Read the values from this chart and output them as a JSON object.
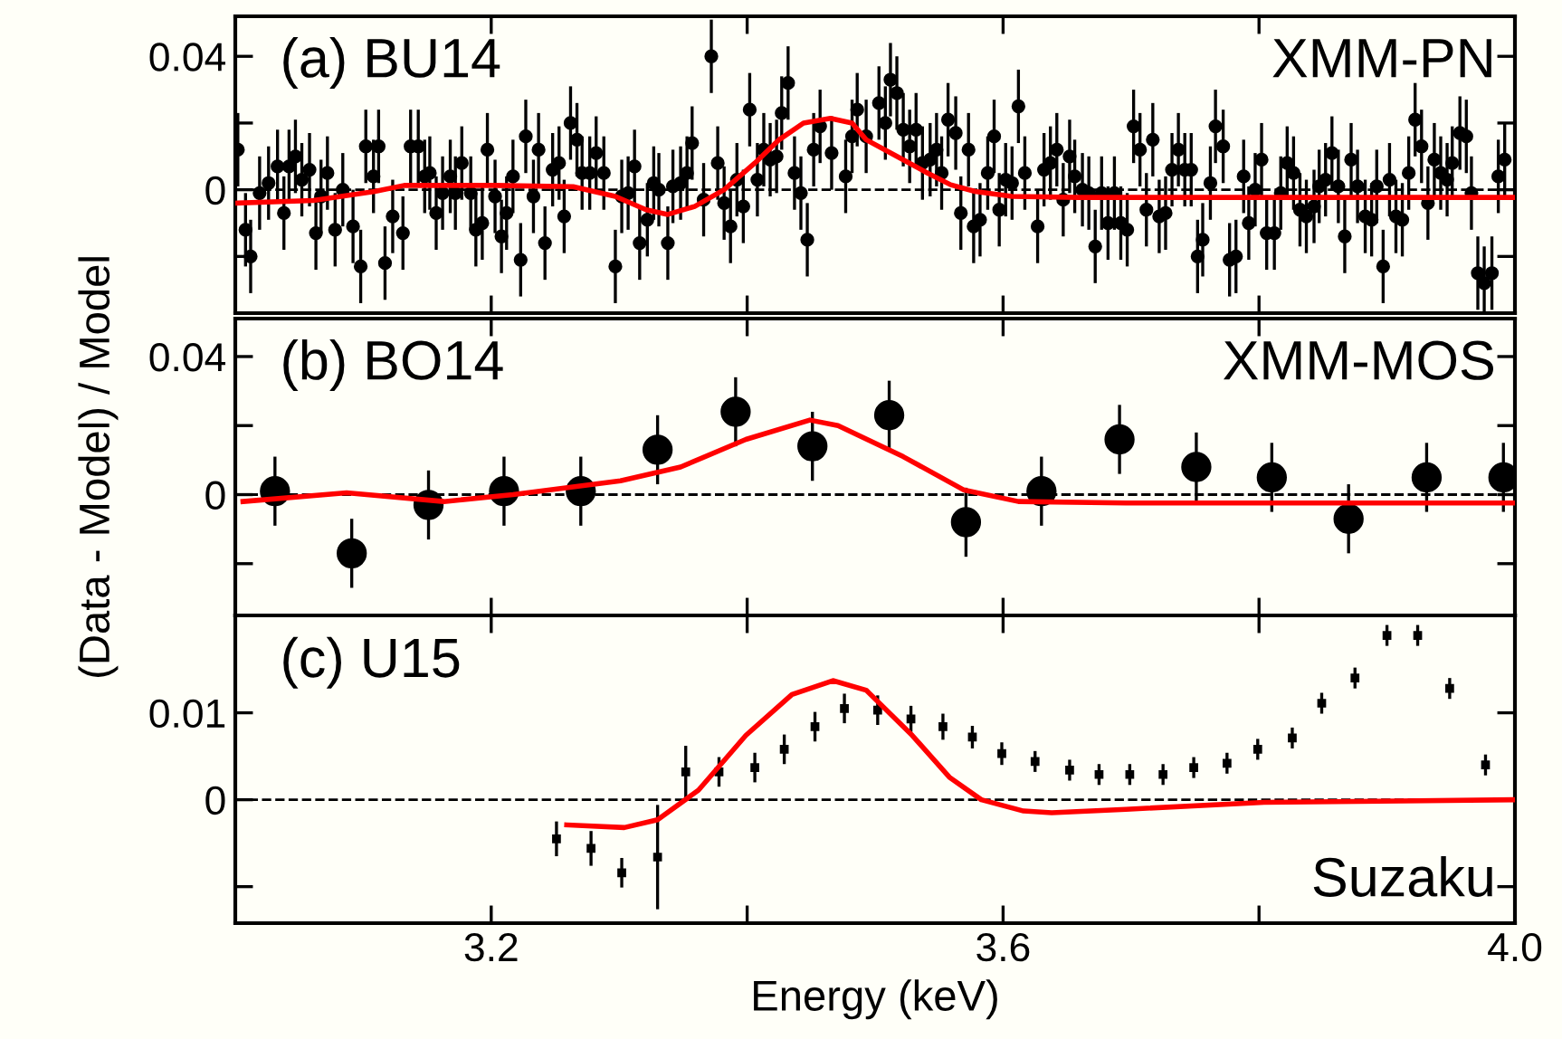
{
  "chart_data": [
    {
      "type": "scatter",
      "annotations": [
        "(a) BU14",
        "XMM-PN"
      ],
      "xlim": [
        3.0,
        4.0
      ],
      "ylim": [
        -0.037,
        0.052
      ],
      "xticks": [
        {
          "value": 3.2,
          "label": null
        },
        {
          "value": 3.4,
          "label": null
        },
        {
          "value": 3.6,
          "label": null
        },
        {
          "value": 3.8,
          "label": null
        }
      ],
      "yticks": [
        {
          "value": -0.02,
          "label": null
        },
        0,
        {
          "value": 0.02,
          "label": null
        },
        0.04
      ],
      "tick_labels": "y",
      "ref_lines": [
        {
          "axis": "y",
          "value": 0,
          "color": "#000000",
          "line_style": "dashed"
        }
      ],
      "series": [
        {
          "color": "#000000",
          "marker": "circle",
          "x": [
            3.002,
            3.008,
            3.012,
            3.019,
            3.026,
            3.033,
            3.038,
            3.042,
            3.047,
            3.052,
            3.058,
            3.063,
            3.067,
            3.072,
            3.078,
            3.084,
            3.092,
            3.098,
            3.102,
            3.108,
            3.112,
            3.117,
            3.123,
            3.131,
            3.137,
            3.143,
            3.148,
            3.152,
            3.157,
            3.162,
            3.168,
            3.172,
            3.177,
            3.184,
            3.188,
            3.193,
            3.197,
            3.203,
            3.208,
            3.212,
            3.217,
            3.223,
            3.227,
            3.233,
            3.237,
            3.242,
            3.248,
            3.253,
            3.257,
            3.262,
            3.267,
            3.271,
            3.277,
            3.282,
            3.288,
            3.297,
            3.302,
            3.307,
            3.312,
            3.316,
            3.322,
            3.327,
            3.331,
            3.338,
            3.342,
            3.348,
            3.353,
            3.357,
            3.366,
            3.372,
            3.377,
            3.382,
            3.387,
            3.392,
            3.397,
            3.402,
            3.408,
            3.413,
            3.418,
            3.423,
            3.427,
            3.432,
            3.437,
            3.442,
            3.447,
            3.452,
            3.457,
            3.466,
            3.477,
            3.482,
            3.486,
            3.493,
            3.503,
            3.508,
            3.512,
            3.517,
            3.522,
            3.527,
            3.532,
            3.537,
            3.543,
            3.548,
            3.552,
            3.557,
            3.563,
            3.567,
            3.573,
            3.577,
            3.582,
            3.588,
            3.593,
            3.597,
            3.602,
            3.607,
            3.612,
            3.617,
            3.627,
            3.632,
            3.637,
            3.642,
            3.647,
            3.652,
            3.656,
            3.662,
            3.667,
            3.672,
            3.677,
            3.682,
            3.687,
            3.692,
            3.697,
            3.702,
            3.707,
            3.712,
            3.717,
            3.722,
            3.727,
            3.732,
            3.737,
            3.742,
            3.747,
            3.752,
            3.756,
            3.762,
            3.766,
            3.772,
            3.777,
            3.782,
            3.788,
            3.792,
            3.797,
            3.802,
            3.806,
            3.812,
            3.817,
            3.822,
            3.827,
            3.832,
            3.837,
            3.843,
            3.847,
            3.852,
            3.857,
            3.862,
            3.867,
            3.872,
            3.877,
            3.883,
            3.888,
            3.892,
            3.897,
            3.902,
            3.907,
            3.912,
            3.917,
            3.922,
            3.927,
            3.932,
            3.937,
            3.942,
            3.947,
            3.951,
            3.957,
            3.962,
            3.966,
            3.971,
            3.976,
            3.982,
            3.987,
            3.992
          ],
          "values": [
            0.012,
            -0.012,
            -0.02,
            -0.001,
            0.002,
            0.007,
            -0.007,
            0.007,
            0.01,
            0.003,
            0.006,
            -0.013,
            -0.002,
            0.005,
            -0.012,
            0.0,
            -0.011,
            -0.023,
            0.013,
            0.004,
            0.013,
            -0.022,
            -0.008,
            -0.013,
            0.013,
            0.013,
            0.004,
            0.005,
            -0.007,
            -0.001,
            0.004,
            -0.001,
            0.008,
            -0.001,
            -0.012,
            -0.01,
            0.012,
            -0.002,
            -0.014,
            -0.007,
            0.004,
            -0.021,
            0.016,
            -0.002,
            0.012,
            -0.016,
            0.006,
            0.008,
            -0.008,
            0.02,
            0.015,
            0.005,
            0.005,
            0.011,
            0.005,
            -0.023,
            -0.002,
            -0.001,
            0.007,
            -0.016,
            -0.009,
            0.002,
            0.0,
            -0.016,
            0.001,
            0.002,
            0.005,
            0.014,
            -0.003,
            0.04,
            0.008,
            -0.004,
            -0.011,
            0.003,
            -0.005,
            0.024,
            0.003,
            0.012,
            0.009,
            0.01,
            0.023,
            0.032,
            0.005,
            -0.001,
            -0.015,
            0.012,
            0.019,
            0.011,
            0.004,
            0.016,
            0.024,
            0.016,
            0.026,
            0.02,
            0.033,
            0.029,
            0.018,
            0.013,
            0.018,
            0.008,
            0.009,
            0.012,
            0.005,
            0.021,
            0.017,
            -0.007,
            0.012,
            -0.011,
            -0.009,
            0.005,
            0.016,
            -0.006,
            0.003,
            0.002,
            0.025,
            0.005,
            -0.011,
            0.006,
            0.008,
            0.012,
            -0.003,
            0.01,
            0.004,
            0.0,
            -0.001,
            -0.017,
            -0.001,
            -0.01,
            -0.001,
            -0.01,
            -0.012,
            0.019,
            0.012,
            -0.006,
            0.015,
            -0.008,
            -0.007,
            0.006,
            0.012,
            0.006,
            0.006,
            -0.02,
            -0.015,
            0.002,
            0.019,
            0.013,
            -0.021,
            -0.02,
            0.004,
            -0.01,
            0.0,
            0.009,
            -0.013,
            -0.013,
            -0.001,
            0.008,
            0.005,
            -0.006,
            -0.008,
            -0.005,
            0.001,
            0.003,
            0.011,
            0.001,
            -0.014,
            0.009,
            0.001,
            -0.008,
            -0.009,
            0.001,
            -0.023,
            0.003,
            -0.008,
            -0.009,
            0.005,
            0.021,
            0.013,
            -0.004,
            0.009,
            0.005,
            0.003,
            0.008,
            0.017,
            0.016,
            -0.001,
            -0.025,
            -0.028,
            -0.025,
            0.004,
            0.009
          ],
          "errors": [
            0.011,
            0.011,
            0.011,
            0.011,
            0.011,
            0.011,
            0.011,
            0.011,
            0.011,
            0.011,
            0.011,
            0.011,
            0.011,
            0.011,
            0.011,
            0.011,
            0.011,
            0.011,
            0.011,
            0.011,
            0.011,
            0.011,
            0.011,
            0.011,
            0.011,
            0.011,
            0.011,
            0.011,
            0.011,
            0.011,
            0.011,
            0.011,
            0.011,
            0.011,
            0.011,
            0.011,
            0.011,
            0.011,
            0.011,
            0.011,
            0.011,
            0.011,
            0.011,
            0.011,
            0.011,
            0.011,
            0.011,
            0.011,
            0.011,
            0.011,
            0.011,
            0.011,
            0.011,
            0.011,
            0.011,
            0.011,
            0.011,
            0.011,
            0.011,
            0.011,
            0.011,
            0.011,
            0.011,
            0.011,
            0.011,
            0.011,
            0.011,
            0.011,
            0.011,
            0.011,
            0.011,
            0.011,
            0.011,
            0.011,
            0.011,
            0.011,
            0.011,
            0.011,
            0.011,
            0.011,
            0.011,
            0.011,
            0.011,
            0.011,
            0.011,
            0.011,
            0.011,
            0.011,
            0.011,
            0.011,
            0.011,
            0.011,
            0.011,
            0.011,
            0.011,
            0.011,
            0.011,
            0.011,
            0.011,
            0.011,
            0.011,
            0.011,
            0.011,
            0.011,
            0.011,
            0.011,
            0.011,
            0.011,
            0.011,
            0.011,
            0.011,
            0.011,
            0.011,
            0.011,
            0.011,
            0.011,
            0.011,
            0.011,
            0.011,
            0.011,
            0.011,
            0.011,
            0.011,
            0.011,
            0.011,
            0.011,
            0.011,
            0.011,
            0.011,
            0.011,
            0.011,
            0.011,
            0.011,
            0.011,
            0.011,
            0.011,
            0.011,
            0.011,
            0.011,
            0.011,
            0.011,
            0.011,
            0.011,
            0.011,
            0.011,
            0.011,
            0.011,
            0.011,
            0.011,
            0.011,
            0.011,
            0.011,
            0.011,
            0.011,
            0.011,
            0.011,
            0.011,
            0.011,
            0.011,
            0.011,
            0.011,
            0.011,
            0.011,
            0.011,
            0.011,
            0.011,
            0.011,
            0.011,
            0.011,
            0.011,
            0.011,
            0.011,
            0.011,
            0.011,
            0.011,
            0.011,
            0.011,
            0.011,
            0.011,
            0.011,
            0.011,
            0.011,
            0.011,
            0.011,
            0.011,
            0.011,
            0.011,
            0.011,
            0.011,
            0.011
          ]
        },
        {
          "type": "line",
          "color": "#ff0000",
          "marker": "none",
          "line_style": "solid",
          "x": [
            3.002,
            3.061,
            3.109,
            3.132,
            3.203,
            3.264,
            3.297,
            3.321,
            3.338,
            3.359,
            3.382,
            3.406,
            3.425,
            3.444,
            3.465,
            3.482,
            3.493,
            3.517,
            3.541,
            3.559,
            3.578,
            3.607,
            3.659,
            4.0
          ],
          "values": [
            -0.004,
            -0.0032,
            -0.0005,
            0.0013,
            0.0013,
            0.0009,
            -0.002,
            -0.006,
            -0.0074,
            -0.005,
            0.0,
            0.008,
            0.015,
            0.02,
            0.0214,
            0.02,
            0.015,
            0.01,
            0.005,
            0.0015,
            -0.0005,
            -0.002,
            -0.0023,
            -0.0023
          ]
        }
      ]
    },
    {
      "type": "scatter",
      "annotations": [
        "(b) BO14",
        "XMM-MOS"
      ],
      "ylabel": "(Data - Model) / Model",
      "xlim": [
        3.0,
        4.0
      ],
      "ylim": [
        -0.035,
        0.051
      ],
      "xticks": [
        {
          "value": 3.2,
          "label": null
        },
        {
          "value": 3.4,
          "label": null
        },
        {
          "value": 3.6,
          "label": null
        },
        {
          "value": 3.8,
          "label": null
        }
      ],
      "yticks": [
        {
          "value": -0.02,
          "label": null
        },
        0,
        {
          "value": 0.02,
          "label": null
        },
        0.04
      ],
      "tick_labels": "y",
      "ref_lines": [
        {
          "axis": "y",
          "value": 0,
          "color": "#000000",
          "line_style": "dashed"
        }
      ],
      "series": [
        {
          "color": "#000000",
          "marker": "circle",
          "x": [
            3.031,
            3.091,
            3.151,
            3.21,
            3.27,
            3.33,
            3.391,
            3.451,
            3.511,
            3.571,
            3.63,
            3.691,
            3.751,
            3.81,
            3.87,
            3.931,
            3.991
          ],
          "values": [
            0.001,
            -0.017,
            -0.003,
            0.001,
            0.001,
            0.013,
            0.024,
            0.014,
            0.023,
            -0.008,
            0.001,
            0.016,
            0.008,
            0.005,
            -0.007,
            0.005,
            0.005
          ],
          "errors": [
            0.01,
            0.01,
            0.01,
            0.01,
            0.01,
            0.01,
            0.01,
            0.01,
            0.01,
            0.01,
            0.01,
            0.01,
            0.01,
            0.01,
            0.01,
            0.01,
            0.01
          ]
        },
        {
          "type": "line",
          "color": "#ff0000",
          "marker": "none",
          "line_style": "solid",
          "x": [
            3.006,
            3.087,
            3.163,
            3.217,
            3.301,
            3.348,
            3.399,
            3.449,
            3.471,
            3.522,
            3.569,
            3.612,
            3.696,
            4.0
          ],
          "values": [
            -0.002,
            0.0005,
            -0.002,
            0.0,
            0.004,
            0.008,
            0.016,
            0.0216,
            0.02,
            0.011,
            0.0014,
            -0.002,
            -0.0024,
            -0.0024
          ]
        }
      ]
    },
    {
      "type": "scatter",
      "annotations": [
        "(c) U15",
        "Suzaku"
      ],
      "xlabel": "Energy (keV)",
      "xlim": [
        3.0,
        4.0
      ],
      "ylim": [
        -0.0142,
        0.0212
      ],
      "xticks": [
        3.2,
        {
          "value": 3.4,
          "label": null
        },
        3.6,
        {
          "value": 3.8,
          "label": null
        },
        {
          "value": 4.0,
          "label": "4.0"
        }
      ],
      "yticks": [
        {
          "value": -0.01,
          "label": null
        },
        0,
        0.01
      ],
      "ref_lines": [
        {
          "axis": "y",
          "value": 0,
          "color": "#000000",
          "line_style": "dashed"
        }
      ],
      "series": [
        {
          "color": "#000000",
          "marker": "square",
          "x": [
            3.251,
            3.278,
            3.302,
            3.33,
            3.352,
            3.378,
            3.406,
            3.429,
            3.453,
            3.476,
            3.502,
            3.528,
            3.553,
            3.576,
            3.599,
            3.625,
            3.652,
            3.675,
            3.699,
            3.725,
            3.749,
            3.775,
            3.799,
            3.826,
            3.849,
            3.875,
            3.9,
            3.924,
            3.949,
            3.977
          ],
          "values": [
            -0.0045,
            -0.0056,
            -0.0084,
            -0.0066,
            0.0032,
            0.0032,
            0.0037,
            0.0058,
            0.0084,
            0.0105,
            0.0103,
            0.0093,
            0.0084,
            0.0072,
            0.0053,
            0.0044,
            0.0034,
            0.0029,
            0.0029,
            0.0029,
            0.0037,
            0.0042,
            0.0058,
            0.0071,
            0.0111,
            0.014,
            0.0189,
            0.0189,
            0.0128,
            0.004
          ],
          "errors": [
            0.002,
            0.002,
            0.0017,
            0.006,
            0.003,
            0.0017,
            0.0017,
            0.0017,
            0.0017,
            0.0017,
            0.0017,
            0.0015,
            0.0015,
            0.0013,
            0.0013,
            0.0012,
            0.0012,
            0.0012,
            0.0012,
            0.0012,
            0.0012,
            0.0012,
            0.0012,
            0.0012,
            0.0012,
            0.0012,
            0.0012,
            0.0012,
            0.0012,
            0.0012
          ]
        },
        {
          "type": "line",
          "color": "#ff0000",
          "marker": "none",
          "line_style": "solid",
          "x": [
            3.259,
            3.304,
            3.33,
            3.362,
            3.399,
            3.435,
            3.467,
            3.493,
            3.529,
            3.558,
            3.583,
            3.616,
            3.638,
            3.696,
            3.804,
            4.0
          ],
          "values": [
            -0.0029,
            -0.0032,
            -0.0023,
            0.0011,
            0.0074,
            0.0121,
            0.0137,
            0.0126,
            0.0074,
            0.0026,
            0.0,
            -0.0013,
            -0.0015,
            -0.0011,
            -0.0003,
            0.0
          ]
        }
      ]
    }
  ]
}
